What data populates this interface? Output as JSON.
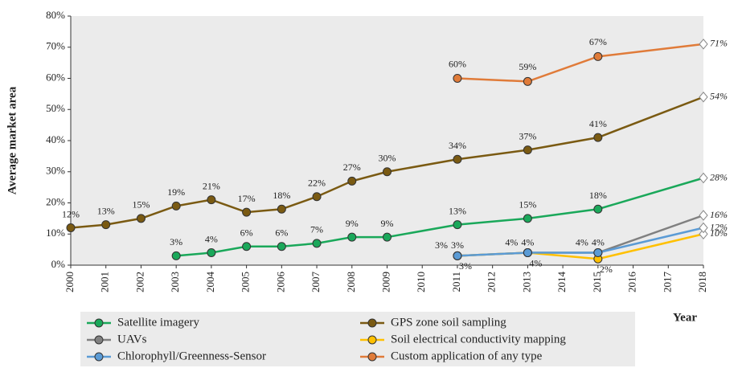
{
  "chart_data": {
    "type": "line",
    "y_label": "Average market area",
    "x_label": "Year",
    "xlim": [
      2000,
      2018
    ],
    "xticks": [
      2000,
      2001,
      2002,
      2003,
      2004,
      2005,
      2006,
      2007,
      2008,
      2009,
      2010,
      2011,
      2012,
      2013,
      2014,
      2015,
      2016,
      2017,
      2018
    ],
    "ylim": [
      0,
      80
    ],
    "yticks": [
      {
        "value": 0,
        "label": "0%"
      },
      {
        "value": 10,
        "label": "10%"
      },
      {
        "value": 20,
        "label": "20%"
      },
      {
        "value": 30,
        "label": "30%"
      },
      {
        "value": 40,
        "label": "40%"
      },
      {
        "value": 50,
        "label": "50%"
      },
      {
        "value": 60,
        "label": "60%"
      },
      {
        "value": 70,
        "label": "70%"
      },
      {
        "value": 80,
        "label": "80%"
      }
    ],
    "grid": false,
    "legend": "bottom",
    "series": [
      {
        "name": "Satellite imagery",
        "color": "#1aa85a",
        "x": [
          2003,
          2004,
          2005,
          2006,
          2007,
          2008,
          2009,
          2011,
          2013,
          2015,
          2018
        ],
        "values": [
          3,
          4,
          6,
          6,
          7,
          9,
          9,
          13,
          15,
          18,
          28
        ],
        "value_labels": [
          "3%",
          "4%",
          "6%",
          "6%",
          "7%",
          "9%",
          "9%",
          "13%",
          "15%",
          "18%",
          "28%"
        ]
      },
      {
        "name": "GPS zone soil sampling",
        "color": "#7a5a12",
        "x": [
          2000,
          2001,
          2002,
          2003,
          2004,
          2005,
          2006,
          2007,
          2008,
          2009,
          2011,
          2013,
          2015,
          2018
        ],
        "values": [
          12,
          13,
          15,
          19,
          21,
          17,
          18,
          22,
          27,
          30,
          34,
          37,
          41,
          54
        ],
        "value_labels": [
          "12%",
          "13%",
          "15%",
          "19%",
          "21%",
          "17%",
          "18%",
          "22%",
          "27%",
          "30%",
          "34%",
          "37%",
          "41%",
          "54%"
        ]
      },
      {
        "name": "UAVs",
        "color": "#808080",
        "x": [
          2011,
          2013,
          2015,
          2018
        ],
        "values": [
          3,
          4,
          4,
          16
        ],
        "value_labels": [
          "3%",
          "4%",
          "4%",
          "16%"
        ]
      },
      {
        "name": "Soil electrical conductivity mapping",
        "color": "#ffc000",
        "x": [
          2011,
          2013,
          2015,
          2018
        ],
        "values": [
          3,
          4,
          2,
          10
        ],
        "value_labels": [
          "3%",
          "4%",
          "2%",
          "10%"
        ]
      },
      {
        "name": "Chlorophyll/Greenness-Sensor",
        "color": "#5b9bd5",
        "x": [
          2011,
          2013,
          2015,
          2018
        ],
        "values": [
          3,
          4,
          4,
          12
        ],
        "value_labels": [
          "3%",
          "4%",
          "4%",
          "12%"
        ]
      },
      {
        "name": "Custom application of any type",
        "color": "#e07b39",
        "x": [
          2011,
          2013,
          2015,
          2018
        ],
        "values": [
          60,
          59,
          67,
          71
        ],
        "value_labels": [
          "60%",
          "59%",
          "67%",
          "71%"
        ]
      }
    ]
  }
}
